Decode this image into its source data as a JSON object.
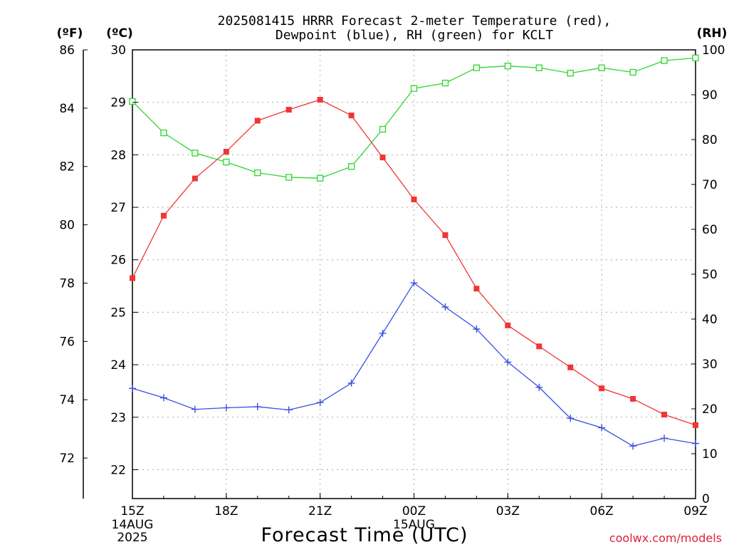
{
  "chart_data": {
    "type": "line",
    "title": [
      "2025081415 HRRR Forecast 2-meter Temperature (red),",
      "Dewpoint (blue), RH (green) for KCLT"
    ],
    "xlabel": "Forecast Time (UTC)",
    "unit_labels": {
      "fahrenheit": "(ºF)",
      "celsius": "(ºC)",
      "rh": "(RH)"
    },
    "credit": "coolwx.com/models",
    "x": [
      "15Z",
      "16Z",
      "17Z",
      "18Z",
      "19Z",
      "20Z",
      "21Z",
      "22Z",
      "23Z",
      "00Z",
      "01Z",
      "02Z",
      "03Z",
      "04Z",
      "05Z",
      "06Z",
      "07Z",
      "08Z",
      "09Z"
    ],
    "x_ticks": [
      {
        "label": "15Z",
        "index": 0,
        "sub": [
          "14AUG",
          "2025"
        ]
      },
      {
        "label": "18Z",
        "index": 3,
        "sub": []
      },
      {
        "label": "21Z",
        "index": 6,
        "sub": []
      },
      {
        "label": "00Z",
        "index": 9,
        "sub": [
          "15AUG"
        ]
      },
      {
        "label": "03Z",
        "index": 12,
        "sub": []
      },
      {
        "label": "06Z",
        "index": 15,
        "sub": []
      },
      {
        "label": "09Z",
        "index": 18,
        "sub": []
      }
    ],
    "y_celsius": {
      "ylim": [
        21.45,
        30.0
      ],
      "ticks": [
        22,
        23,
        24,
        25,
        26,
        27,
        28,
        29,
        30
      ]
    },
    "y_fahrenheit": {
      "ticks": [
        72,
        74,
        76,
        78,
        80,
        82,
        84,
        86
      ]
    },
    "y_rh": {
      "ylim": [
        0,
        100
      ],
      "ticks": [
        0,
        10,
        20,
        30,
        40,
        50,
        60,
        70,
        80,
        90,
        100
      ]
    },
    "series": [
      {
        "name": "Temperature",
        "axis": "celsius",
        "color": "#ef3535",
        "marker": "filled-square",
        "values": [
          25.65,
          26.84,
          27.55,
          28.06,
          28.65,
          28.86,
          29.05,
          28.75,
          27.95,
          27.15,
          26.47,
          25.45,
          24.75,
          24.35,
          23.95,
          23.55,
          23.35,
          23.05,
          22.85
        ]
      },
      {
        "name": "Dewpoint",
        "axis": "celsius",
        "color": "#3a50e0",
        "marker": "plus",
        "values": [
          23.55,
          23.37,
          23.15,
          23.18,
          23.2,
          23.14,
          23.28,
          23.65,
          24.6,
          25.56,
          25.1,
          24.68,
          24.05,
          23.57,
          22.98,
          22.8,
          22.45,
          22.6,
          22.5
        ]
      },
      {
        "name": "RH",
        "axis": "rh",
        "color": "#2ed62e",
        "marker": "open-square",
        "values": [
          88.5,
          81.5,
          77,
          75,
          72.6,
          71.6,
          71.4,
          74,
          82.3,
          91.4,
          92.6,
          96,
          96.4,
          96,
          94.8,
          96,
          95,
          97.6,
          98.2
        ]
      }
    ],
    "grid": true
  }
}
